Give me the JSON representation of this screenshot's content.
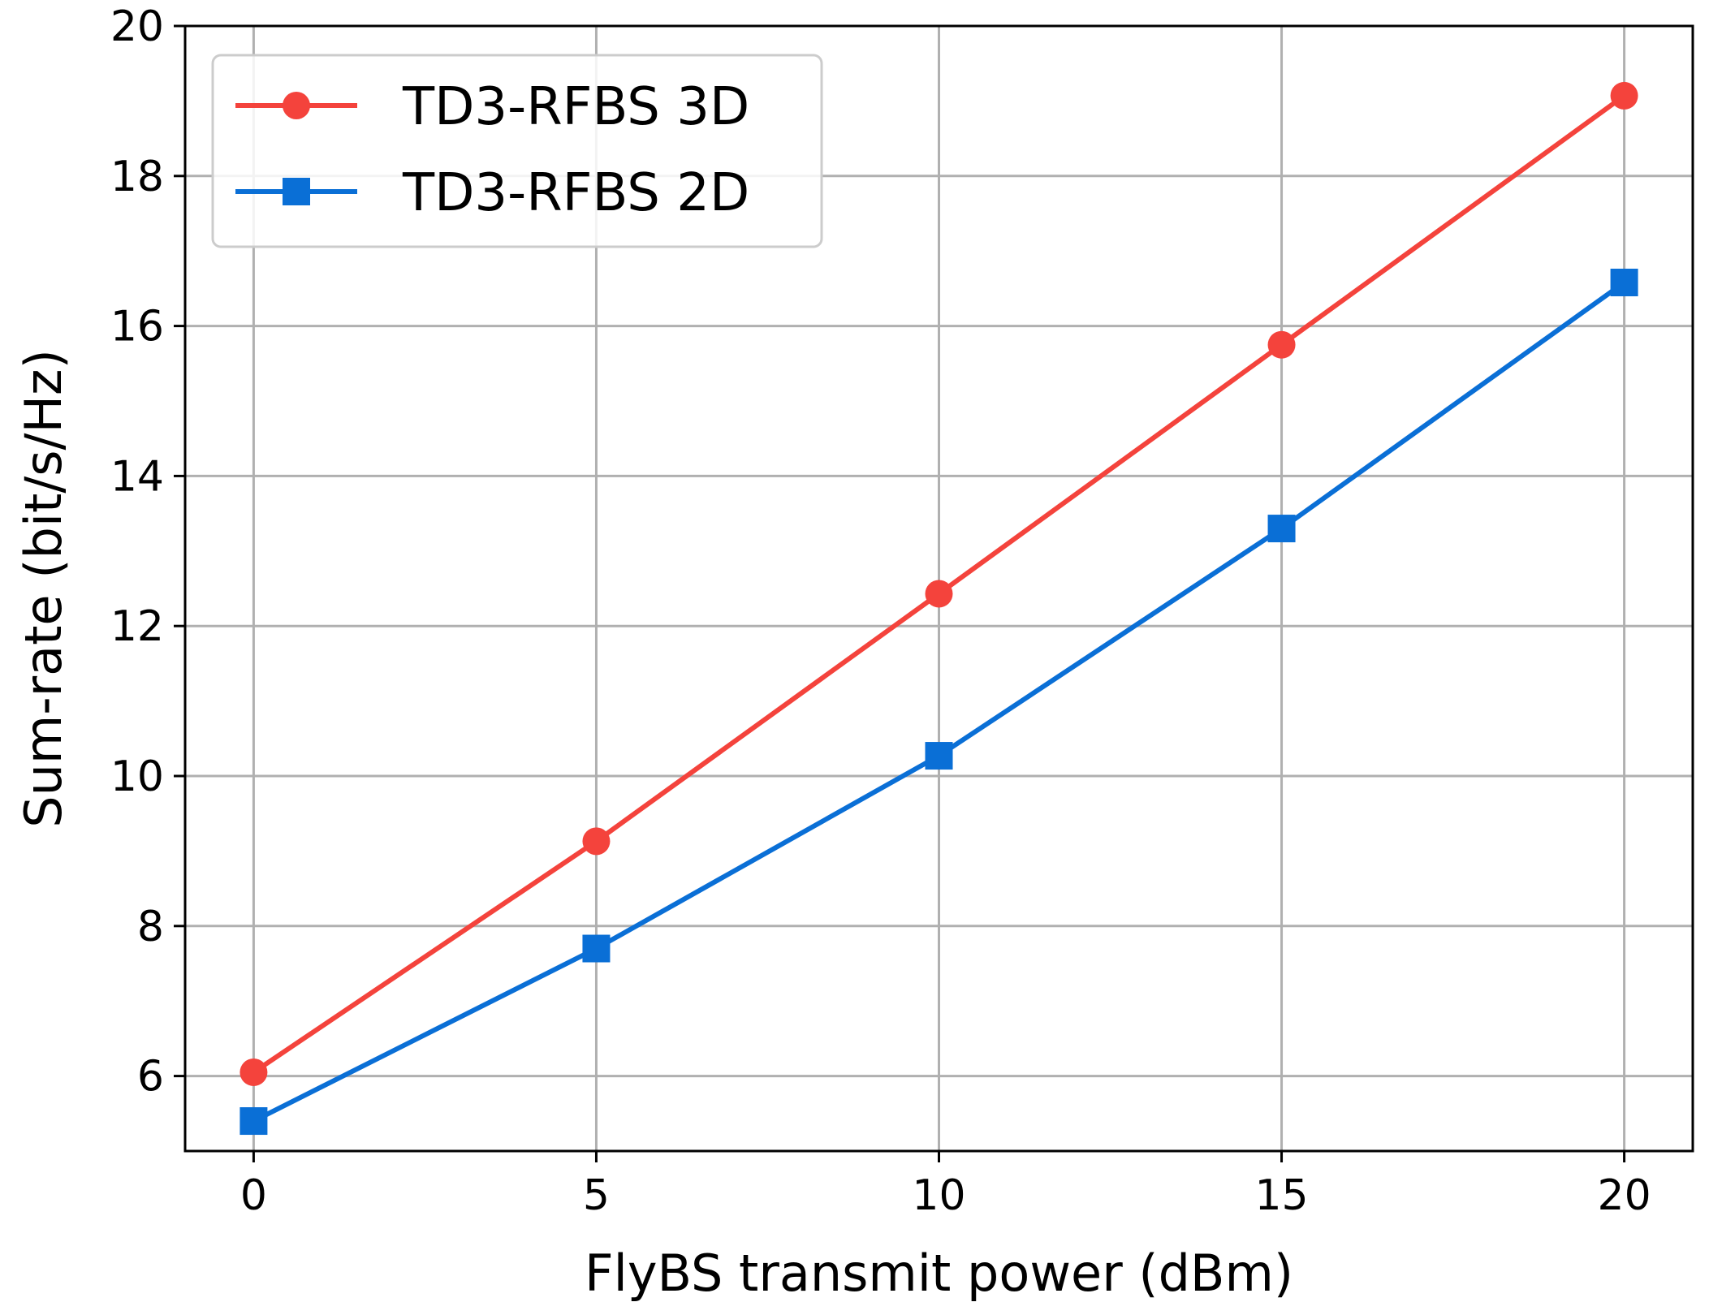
{
  "chart_data": {
    "type": "line",
    "title": "",
    "xlabel": "FlyBS transmit power (dBm)",
    "ylabel": "Sum-rate (bit/s/Hz)",
    "x": [
      0,
      5,
      10,
      15,
      20
    ],
    "xlim": [
      -1,
      21
    ],
    "ylim": [
      5,
      20
    ],
    "xticks": [
      0,
      5,
      10,
      15,
      20
    ],
    "yticks": [
      6,
      8,
      10,
      12,
      14,
      16,
      18,
      20
    ],
    "xtick_labels": [
      "0",
      "5",
      "10",
      "15",
      "20"
    ],
    "ytick_labels": [
      "6",
      "8",
      "10",
      "12",
      "14",
      "16",
      "18",
      "20"
    ],
    "grid": true,
    "legend_position": "upper-left",
    "series": [
      {
        "name": "TD3-RFBS 3D",
        "values": [
          6.05,
          9.13,
          12.43,
          15.75,
          19.07
        ],
        "color": "#f4433c",
        "marker": "circle"
      },
      {
        "name": "TD3-RFBS 2D",
        "values": [
          5.4,
          7.7,
          10.27,
          13.3,
          16.58
        ],
        "color": "#0a6fd6",
        "marker": "square"
      }
    ]
  }
}
